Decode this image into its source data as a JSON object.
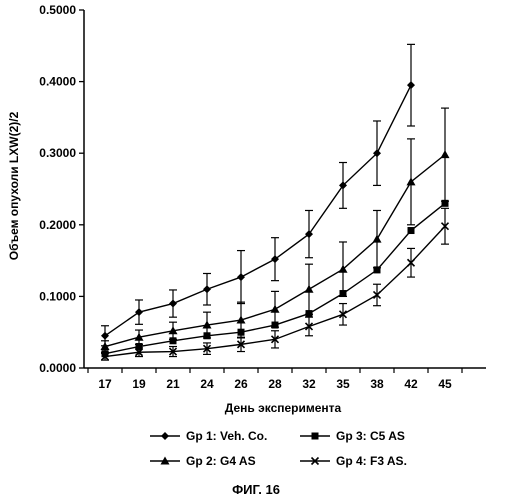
{
  "chart_data": {
    "type": "line",
    "caption": "ФИГ. 16",
    "xlabel": "День эксперимента",
    "ylabel": "Объем опухоли  LXW(2)/2",
    "x": [
      17,
      19,
      21,
      24,
      26,
      28,
      32,
      35,
      38,
      42,
      45
    ],
    "x_tick_labels": [
      "17",
      "19",
      "21",
      "24",
      "26",
      "28",
      "32",
      "35",
      "38",
      "42",
      "45"
    ],
    "ylim": [
      0,
      0.5
    ],
    "y_ticks": [
      0,
      0.1,
      0.2,
      0.3,
      0.4,
      0.5
    ],
    "y_tick_labels": [
      "0.0000",
      "0.1000",
      "0.2000",
      "0.3000",
      "0.4000",
      "0.5000"
    ],
    "grid": false,
    "legend_position": "bottom",
    "series": [
      {
        "name": "Gp 1: Veh. Co.",
        "marker": "diamond",
        "values": [
          0.045,
          0.078,
          0.09,
          0.11,
          0.127,
          0.152,
          0.187,
          0.255,
          0.3,
          0.395,
          null
        ],
        "errors": [
          0.014,
          0.017,
          0.019,
          0.022,
          0.037,
          0.03,
          0.033,
          0.032,
          0.045,
          0.057,
          null
        ]
      },
      {
        "name": "Gp 2: G4 AS",
        "marker": "triangle",
        "values": [
          0.03,
          0.043,
          0.052,
          0.06,
          0.067,
          0.082,
          0.11,
          0.138,
          0.18,
          0.26,
          0.298
        ],
        "errors": [
          0.008,
          0.01,
          0.012,
          0.018,
          0.025,
          0.025,
          0.035,
          0.038,
          0.04,
          0.06,
          0.065
        ]
      },
      {
        "name": "Gp 3: C5 AS",
        "marker": "square",
        "values": [
          0.02,
          0.03,
          0.038,
          0.045,
          0.05,
          0.06,
          0.076,
          0.104,
          0.137,
          0.192,
          0.23
        ]
      },
      {
        "name": "Gp 4: F3 AS.",
        "marker": "cross",
        "values": [
          0.016,
          0.022,
          0.023,
          0.027,
          0.033,
          0.04,
          0.058,
          0.075,
          0.102,
          0.147,
          0.198
        ],
        "errors": [
          0.005,
          0.006,
          0.007,
          0.008,
          0.01,
          0.012,
          0.013,
          0.015,
          0.015,
          0.02,
          0.025
        ]
      }
    ]
  }
}
